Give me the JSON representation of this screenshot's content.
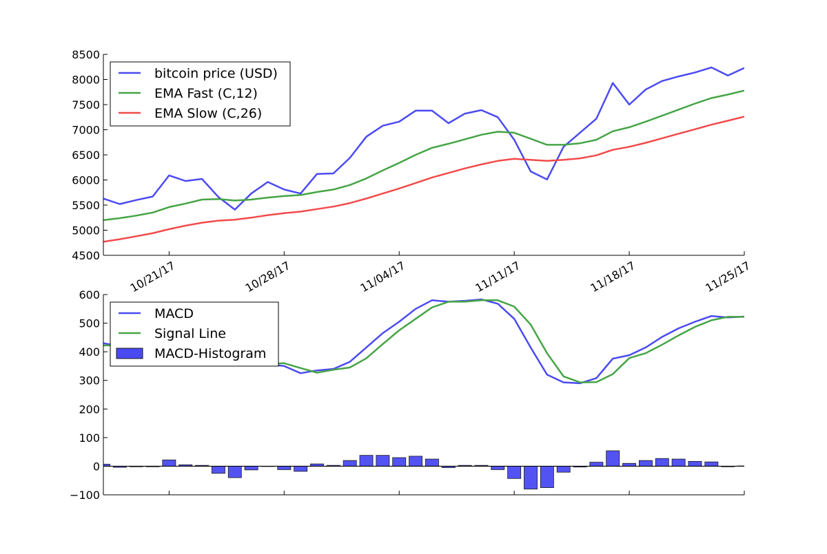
{
  "chart_data": [
    {
      "type": "line",
      "x": [
        "10/17/17",
        "10/18/17",
        "10/19/17",
        "10/20/17",
        "10/21/17",
        "10/22/17",
        "10/23/17",
        "10/24/17",
        "10/25/17",
        "10/26/17",
        "10/27/17",
        "10/28/17",
        "10/29/17",
        "10/30/17",
        "10/31/17",
        "11/01/17",
        "11/02/17",
        "11/03/17",
        "11/04/17",
        "11/05/17",
        "11/06/17",
        "11/07/17",
        "11/08/17",
        "11/09/17",
        "11/10/17",
        "11/11/17",
        "11/12/17",
        "11/13/17",
        "11/14/17",
        "11/15/17",
        "11/16/17",
        "11/17/17",
        "11/18/17",
        "11/19/17",
        "11/20/17",
        "11/21/17",
        "11/22/17",
        "11/23/17",
        "11/24/17",
        "11/25/17"
      ],
      "xticks": [
        "10/21/17",
        "10/28/17",
        "11/04/17",
        "11/11/17",
        "11/18/17",
        "11/25/17"
      ],
      "ylim": [
        4500,
        8500
      ],
      "yticks": [
        4500,
        5000,
        5500,
        6000,
        6500,
        7000,
        7500,
        8000,
        8500
      ],
      "grid": false,
      "legend_position": "top-left",
      "series": [
        {
          "name": "bitcoin price (USD)",
          "color": "#4a4af2",
          "values": [
            5630,
            5520,
            5600,
            5670,
            6090,
            5980,
            6020,
            5660,
            5410,
            5730,
            5960,
            5810,
            5730,
            6120,
            6130,
            6440,
            6860,
            7080,
            7160,
            7380,
            7380,
            7130,
            7320,
            7390,
            7250,
            6800,
            6170,
            6010,
            6660,
            6940,
            7220,
            7930,
            7500,
            7800,
            7970,
            8060,
            8140,
            8240,
            8080,
            8230
          ]
        },
        {
          "name": "EMA Fast (C,12)",
          "color": "#45a445",
          "values": [
            5200,
            5240,
            5290,
            5350,
            5460,
            5530,
            5610,
            5620,
            5590,
            5610,
            5650,
            5680,
            5700,
            5760,
            5810,
            5900,
            6030,
            6190,
            6340,
            6500,
            6640,
            6720,
            6810,
            6900,
            6960,
            6940,
            6820,
            6700,
            6700,
            6730,
            6800,
            6970,
            7050,
            7160,
            7280,
            7400,
            7520,
            7630,
            7700,
            7780
          ]
        },
        {
          "name": "EMA Slow (C,26)",
          "color": "#f24a4a",
          "values": [
            4770,
            4820,
            4880,
            4940,
            5020,
            5090,
            5150,
            5190,
            5210,
            5250,
            5300,
            5340,
            5370,
            5420,
            5470,
            5540,
            5630,
            5730,
            5830,
            5940,
            6050,
            6140,
            6230,
            6310,
            6380,
            6420,
            6400,
            6380,
            6400,
            6430,
            6490,
            6600,
            6660,
            6740,
            6830,
            6920,
            7010,
            7100,
            7180,
            7260
          ]
        }
      ]
    },
    {
      "type": "bar",
      "x": [
        "10/17/17",
        "10/18/17",
        "10/19/17",
        "10/20/17",
        "10/21/17",
        "10/22/17",
        "10/23/17",
        "10/24/17",
        "10/25/17",
        "10/26/17",
        "10/27/17",
        "10/28/17",
        "10/29/17",
        "10/30/17",
        "10/31/17",
        "11/01/17",
        "11/02/17",
        "11/03/17",
        "11/04/17",
        "11/05/17",
        "11/06/17",
        "11/07/17",
        "11/08/17",
        "11/09/17",
        "11/10/17",
        "11/11/17",
        "11/12/17",
        "11/13/17",
        "11/14/17",
        "11/15/17",
        "11/16/17",
        "11/17/17",
        "11/18/17",
        "11/19/17",
        "11/20/17",
        "11/21/17",
        "11/22/17",
        "11/23/17",
        "11/24/17",
        "11/25/17"
      ],
      "ylim": [
        -100,
        600
      ],
      "yticks": [
        -100,
        0,
        100,
        200,
        300,
        400,
        500,
        600
      ],
      "ytick_labels": [
        "−100",
        "0",
        "100",
        "200",
        "300",
        "400",
        "500",
        "600"
      ],
      "grid": false,
      "legend_position": "top-left",
      "series": [
        {
          "name": "MACD",
          "color": "#4a4af2",
          "kind": "line",
          "values": [
            430,
            420,
            410,
            400,
            395,
            390,
            385,
            380,
            370,
            362,
            357,
            350,
            325,
            335,
            340,
            365,
            415,
            465,
            505,
            550,
            580,
            575,
            578,
            583,
            568,
            515,
            415,
            320,
            293,
            290,
            308,
            376,
            388,
            415,
            452,
            482,
            505,
            525,
            520,
            523
          ]
        },
        {
          "name": "Signal Line",
          "color": "#45a445",
          "kind": "line",
          "values": [
            422,
            423,
            413,
            402,
            373,
            385,
            382,
            404,
            410,
            375,
            358,
            360,
            343,
            327,
            337,
            345,
            377,
            427,
            475,
            515,
            555,
            575,
            575,
            580,
            580,
            558,
            495,
            395,
            314,
            293,
            294,
            322,
            378,
            395,
            425,
            457,
            487,
            510,
            522,
            522
          ]
        },
        {
          "name": "MACD-Histogram",
          "color": "#4a4af2",
          "kind": "bar",
          "values": [
            7,
            -4,
            -2,
            -2,
            22,
            5,
            3,
            -25,
            -40,
            -13,
            -1,
            -12,
            -18,
            8,
            3,
            20,
            38,
            38,
            30,
            35,
            25,
            -5,
            3,
            3,
            -12,
            -43,
            -80,
            -75,
            -21,
            -3,
            14,
            54,
            10,
            20,
            27,
            25,
            17,
            15,
            -2,
            1
          ]
        }
      ]
    }
  ]
}
